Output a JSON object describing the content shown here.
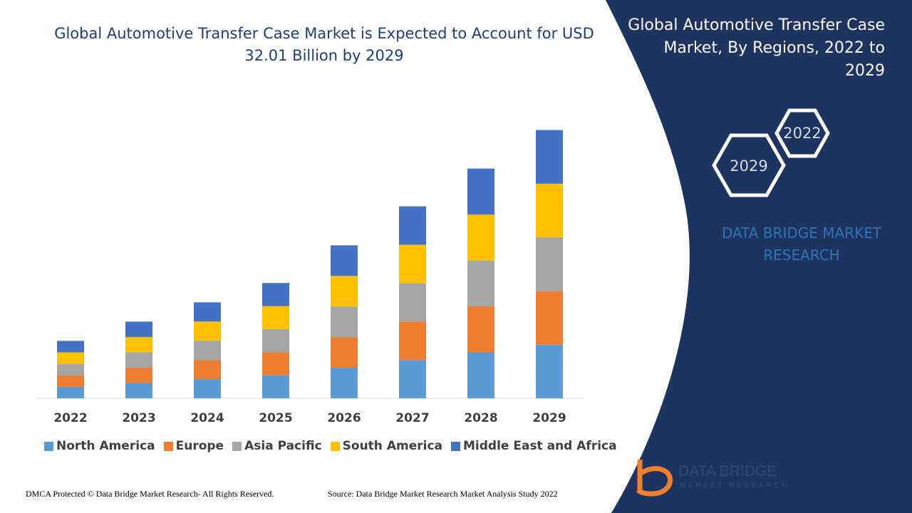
{
  "chart_data": {
    "type": "stacked-bar",
    "title": "Global Automotive Transfer Case Market is Expected to Account for USD 32.01 Billion by 2029",
    "categories": [
      "2022",
      "2023",
      "2024",
      "2025",
      "2026",
      "2027",
      "2028",
      "2029"
    ],
    "series": [
      {
        "name": "North America",
        "color": "#5b9bd5",
        "values": [
          1.37,
          1.83,
          2.29,
          2.75,
          3.65,
          4.58,
          5.48,
          6.4
        ]
      },
      {
        "name": "Europe",
        "color": "#ed7d31",
        "values": [
          1.37,
          1.83,
          2.29,
          2.75,
          3.65,
          4.58,
          5.48,
          6.4
        ]
      },
      {
        "name": "Asia Pacific",
        "color": "#a5a5a5",
        "values": [
          1.37,
          1.83,
          2.29,
          2.75,
          3.65,
          4.58,
          5.48,
          6.4
        ]
      },
      {
        "name": "South America",
        "color": "#ffc000",
        "values": [
          1.37,
          1.83,
          2.29,
          2.75,
          3.65,
          4.58,
          5.48,
          6.4
        ]
      },
      {
        "name": "Middle East and Africa",
        "color": "#4472c4",
        "values": [
          1.37,
          1.83,
          2.29,
          2.75,
          3.65,
          4.58,
          5.48,
          6.4
        ]
      }
    ],
    "ylim": [
      0,
      34
    ]
  },
  "panel": {
    "title": "Global Automotive Transfer Case Market, By Regions, 2022 to 2029",
    "years": [
      "2022",
      "2029"
    ],
    "brand": "DATA BRIDGE MARKET RESEARCH"
  },
  "logo": {
    "name": "DATA BRIDGE",
    "tagline": "MARKET RESEARCH"
  },
  "footer": {
    "left": "DMCA Protected © Data Bridge Market Research- All Rights Reserved.",
    "right": "Source: Data Bridge Market Research Market Analysis Study 2022"
  }
}
